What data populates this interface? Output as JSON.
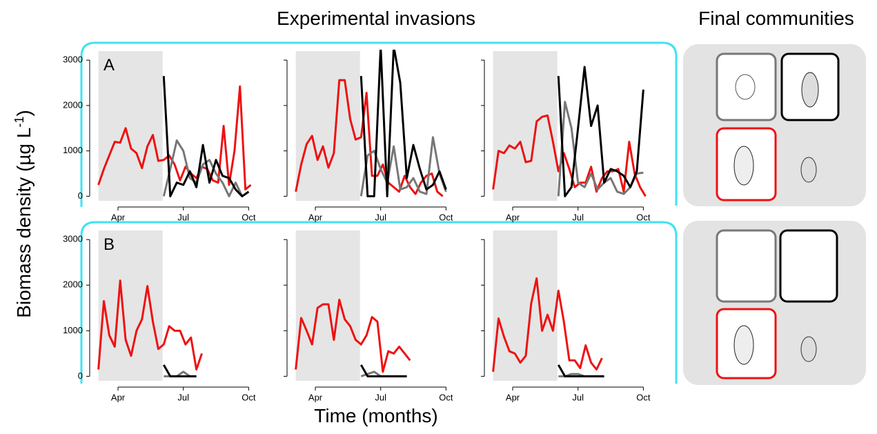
{
  "title": "Experimental invasions",
  "side_title": "Final communities",
  "y_label": [
    "Biomass density (µg L",
    "-1",
    ")"
  ],
  "x_label": "Time (months)",
  "chart_data": [
    {
      "type": "line",
      "label": "A",
      "xlim": [
        2.7,
        10.4
      ],
      "ylim": [
        -100,
        3200
      ],
      "xticks": [
        {
          "value": 4,
          "label": "Apr"
        },
        {
          "value": 7,
          "label": "Jul"
        },
        {
          "value": 10,
          "label": "Oct"
        }
      ],
      "yticks": [
        0,
        1000,
        2000,
        3000
      ],
      "ytick_labels": true,
      "shaded_x": [
        3.1,
        6.05
      ],
      "series": [
        {
          "color": "#ee1111",
          "x": [
            3.1,
            3.35,
            3.6,
            3.85,
            4.1,
            4.35,
            4.6,
            4.85,
            5.1,
            5.35,
            5.6,
            5.85,
            6.1,
            6.35,
            6.6,
            6.85,
            7.1,
            7.35,
            7.6,
            7.85,
            8.1,
            8.35,
            8.6,
            8.85,
            9.1,
            9.35,
            9.6,
            9.85,
            10.1
          ],
          "values": [
            250,
            600,
            900,
            1200,
            1180,
            1500,
            1050,
            950,
            620,
            1100,
            1350,
            780,
            800,
            900,
            700,
            350,
            650,
            500,
            400,
            650,
            600,
            350,
            300,
            1550,
            250,
            1000,
            2420,
            150,
            250
          ]
        },
        {
          "color": "#777777",
          "x": [
            6.1,
            6.4,
            6.7,
            7.0,
            7.3,
            7.6,
            7.9,
            8.2,
            8.5,
            8.8,
            9.1,
            9.4,
            9.7,
            10.0
          ],
          "values": [
            0,
            600,
            1230,
            1000,
            400,
            300,
            700,
            800,
            500,
            300,
            0,
            300,
            0,
            100
          ]
        },
        {
          "color": "#000000",
          "x": [
            6.1,
            6.4,
            6.7,
            7.0,
            7.3,
            7.6,
            7.9,
            8.2,
            8.5,
            8.8,
            9.1,
            9.4,
            9.7,
            10.0
          ],
          "values": [
            2650,
            0,
            300,
            250,
            550,
            200,
            1130,
            300,
            800,
            450,
            400,
            150,
            0,
            100
          ]
        }
      ]
    },
    {
      "type": "line",
      "xlim": [
        2.7,
        10.4
      ],
      "ylim": [
        -100,
        3200
      ],
      "xticks": [
        {
          "value": 4,
          "label": "Apr"
        },
        {
          "value": 7,
          "label": "Jul"
        },
        {
          "value": 10,
          "label": "Oct"
        }
      ],
      "yticks": [
        0,
        1000,
        2000,
        3000
      ],
      "ytick_labels": false,
      "shaded_x": [
        3.1,
        6.05
      ],
      "series": [
        {
          "color": "#ee1111",
          "x": [
            3.1,
            3.35,
            3.6,
            3.85,
            4.1,
            4.35,
            4.6,
            4.85,
            5.1,
            5.35,
            5.6,
            5.85,
            6.1,
            6.35,
            6.6,
            6.85,
            7.1,
            7.35,
            7.6,
            7.85,
            8.1,
            8.35,
            8.6,
            8.85,
            9.1,
            9.35,
            9.6,
            9.85
          ],
          "values": [
            100,
            700,
            1150,
            1330,
            800,
            1100,
            630,
            950,
            2560,
            2560,
            1700,
            1250,
            1300,
            2280,
            450,
            450,
            700,
            300,
            200,
            100,
            450,
            200,
            50,
            300,
            450,
            500,
            100,
            0
          ]
        },
        {
          "color": "#777777",
          "x": [
            6.1,
            6.4,
            6.7,
            7.0,
            7.3,
            7.6,
            7.9,
            8.2,
            8.5,
            8.8,
            9.1,
            9.4,
            9.7,
            10.0
          ],
          "values": [
            0,
            900,
            1000,
            600,
            300,
            1100,
            150,
            200,
            400,
            100,
            50,
            1300,
            500,
            100
          ]
        },
        {
          "color": "#000000",
          "x": [
            6.1,
            6.4,
            6.7,
            7.0,
            7.3,
            7.6,
            7.9,
            8.2,
            8.5,
            8.8,
            9.1,
            9.4,
            9.7,
            10.0
          ],
          "values": [
            2650,
            0,
            0,
            3300,
            0,
            3300,
            2500,
            400,
            1130,
            600,
            150,
            250,
            550,
            150
          ]
        }
      ]
    },
    {
      "type": "line",
      "xlim": [
        2.7,
        10.4
      ],
      "ylim": [
        -100,
        3200
      ],
      "xticks": [
        {
          "value": 4,
          "label": "Apr"
        },
        {
          "value": 7,
          "label": "Jul"
        },
        {
          "value": 10,
          "label": "Oct"
        }
      ],
      "yticks": [
        0,
        1000,
        2000,
        3000
      ],
      "ytick_labels": false,
      "shaded_x": [
        3.1,
        6.05
      ],
      "series": [
        {
          "color": "#ee1111",
          "x": [
            3.1,
            3.35,
            3.6,
            3.85,
            4.1,
            4.35,
            4.6,
            4.85,
            5.1,
            5.35,
            5.6,
            5.85,
            6.1,
            6.35,
            6.6,
            6.85,
            7.1,
            7.35,
            7.6,
            7.85,
            8.1,
            8.35,
            8.6,
            8.85,
            9.1,
            9.35,
            9.6,
            9.85,
            10.1
          ],
          "values": [
            150,
            1000,
            950,
            1120,
            1050,
            1200,
            750,
            780,
            1650,
            1750,
            1780,
            1200,
            550,
            950,
            600,
            200,
            300,
            300,
            650,
            100,
            400,
            550,
            550,
            600,
            100,
            1200,
            500,
            200,
            0
          ]
        },
        {
          "color": "#777777",
          "x": [
            6.1,
            6.4,
            6.7,
            7.0,
            7.3,
            7.6,
            7.9,
            8.2,
            8.5,
            8.8,
            9.1,
            9.4,
            9.7,
            10.0
          ],
          "values": [
            0,
            2080,
            1500,
            300,
            200,
            500,
            150,
            300,
            400,
            100,
            50,
            200,
            500,
            520
          ]
        },
        {
          "color": "#000000",
          "x": [
            6.1,
            6.4,
            6.7,
            7.0,
            7.3,
            7.6,
            7.9,
            8.2,
            8.5,
            8.8,
            9.1,
            9.4,
            9.7,
            10.0
          ],
          "values": [
            2650,
            0,
            200,
            1500,
            2850,
            1550,
            2000,
            300,
            600,
            550,
            450,
            200,
            550,
            2350
          ]
        }
      ]
    },
    {
      "type": "line",
      "label": "B",
      "xlim": [
        2.7,
        10.4
      ],
      "ylim": [
        -100,
        3200
      ],
      "xticks": [
        {
          "value": 4,
          "label": "Apr"
        },
        {
          "value": 7,
          "label": "Jul"
        },
        {
          "value": 10,
          "label": "Oct"
        }
      ],
      "yticks": [
        0,
        1000,
        2000,
        3000
      ],
      "ytick_labels": true,
      "shaded_x": [
        3.1,
        6.05
      ],
      "series": [
        {
          "color": "#ee1111",
          "x": [
            3.1,
            3.35,
            3.6,
            3.85,
            4.1,
            4.35,
            4.6,
            4.85,
            5.1,
            5.35,
            5.6,
            5.85,
            6.1,
            6.35,
            6.6,
            6.85,
            7.1,
            7.35,
            7.6,
            7.85
          ],
          "values": [
            150,
            1650,
            900,
            650,
            2100,
            800,
            450,
            1000,
            1250,
            1980,
            1200,
            600,
            700,
            1100,
            1000,
            1000,
            700,
            850,
            150,
            500
          ]
        },
        {
          "color": "#777777",
          "x": [
            6.1,
            6.4,
            6.7,
            7.0,
            7.3,
            7.6
          ],
          "values": [
            0,
            0,
            0,
            100,
            0,
            0
          ]
        },
        {
          "color": "#000000",
          "x": [
            6.1,
            6.4,
            6.7,
            7.0,
            7.3,
            7.6
          ],
          "values": [
            250,
            0,
            0,
            0,
            0,
            0
          ]
        }
      ]
    },
    {
      "type": "line",
      "xlim": [
        2.7,
        10.4
      ],
      "ylim": [
        -100,
        3200
      ],
      "xticks": [
        {
          "value": 4,
          "label": "Apr"
        },
        {
          "value": 7,
          "label": "Jul"
        },
        {
          "value": 10,
          "label": "Oct"
        }
      ],
      "yticks": [
        0,
        1000,
        2000,
        3000
      ],
      "ytick_labels": false,
      "shaded_x": [
        3.1,
        6.05
      ],
      "series": [
        {
          "color": "#ee1111",
          "x": [
            3.1,
            3.35,
            3.6,
            3.85,
            4.1,
            4.35,
            4.6,
            4.85,
            5.1,
            5.35,
            5.6,
            5.85,
            6.1,
            6.35,
            6.6,
            6.85,
            7.1,
            7.35,
            7.6,
            7.85,
            8.1,
            8.35
          ],
          "values": [
            150,
            1280,
            1000,
            700,
            1500,
            1580,
            1580,
            800,
            1680,
            1250,
            1100,
            800,
            700,
            900,
            1300,
            1200,
            100,
            550,
            500,
            650,
            500,
            350
          ]
        },
        {
          "color": "#777777",
          "x": [
            6.1,
            6.4,
            6.7,
            7.0,
            7.3,
            7.6,
            7.9,
            8.2
          ],
          "values": [
            0,
            50,
            100,
            0,
            0,
            0,
            0,
            0
          ]
        },
        {
          "color": "#000000",
          "x": [
            6.1,
            6.4,
            6.7,
            7.0,
            7.3,
            7.6,
            7.9,
            8.2
          ],
          "values": [
            250,
            0,
            0,
            0,
            0,
            0,
            0,
            0
          ]
        }
      ]
    },
    {
      "type": "line",
      "xlim": [
        2.7,
        10.4
      ],
      "ylim": [
        -100,
        3200
      ],
      "xticks": [
        {
          "value": 4,
          "label": "Apr"
        },
        {
          "value": 7,
          "label": "Jul"
        },
        {
          "value": 10,
          "label": "Oct"
        }
      ],
      "yticks": [
        0,
        1000,
        2000,
        3000
      ],
      "ytick_labels": false,
      "shaded_x": [
        3.1,
        6.05
      ],
      "series": [
        {
          "color": "#ee1111",
          "x": [
            3.1,
            3.35,
            3.6,
            3.85,
            4.1,
            4.35,
            4.6,
            4.85,
            5.1,
            5.35,
            5.6,
            5.85,
            6.1,
            6.35,
            6.6,
            6.85,
            7.1,
            7.35,
            7.6,
            7.85,
            8.1
          ],
          "values": [
            100,
            1270,
            870,
            550,
            500,
            300,
            450,
            1600,
            2150,
            1000,
            1350,
            1000,
            1880,
            1200,
            350,
            350,
            180,
            680,
            300,
            150,
            400
          ]
        },
        {
          "color": "#777777",
          "x": [
            6.1,
            6.4,
            6.7,
            7.0,
            7.3,
            7.6,
            7.9,
            8.2
          ],
          "values": [
            0,
            0,
            50,
            50,
            0,
            0,
            0,
            0
          ]
        },
        {
          "color": "#000000",
          "x": [
            6.1,
            6.4,
            6.7,
            7.0,
            7.3,
            7.6,
            7.9,
            8.2
          ],
          "values": [
            250,
            0,
            0,
            0,
            0,
            0,
            0,
            0
          ]
        }
      ]
    }
  ]
}
